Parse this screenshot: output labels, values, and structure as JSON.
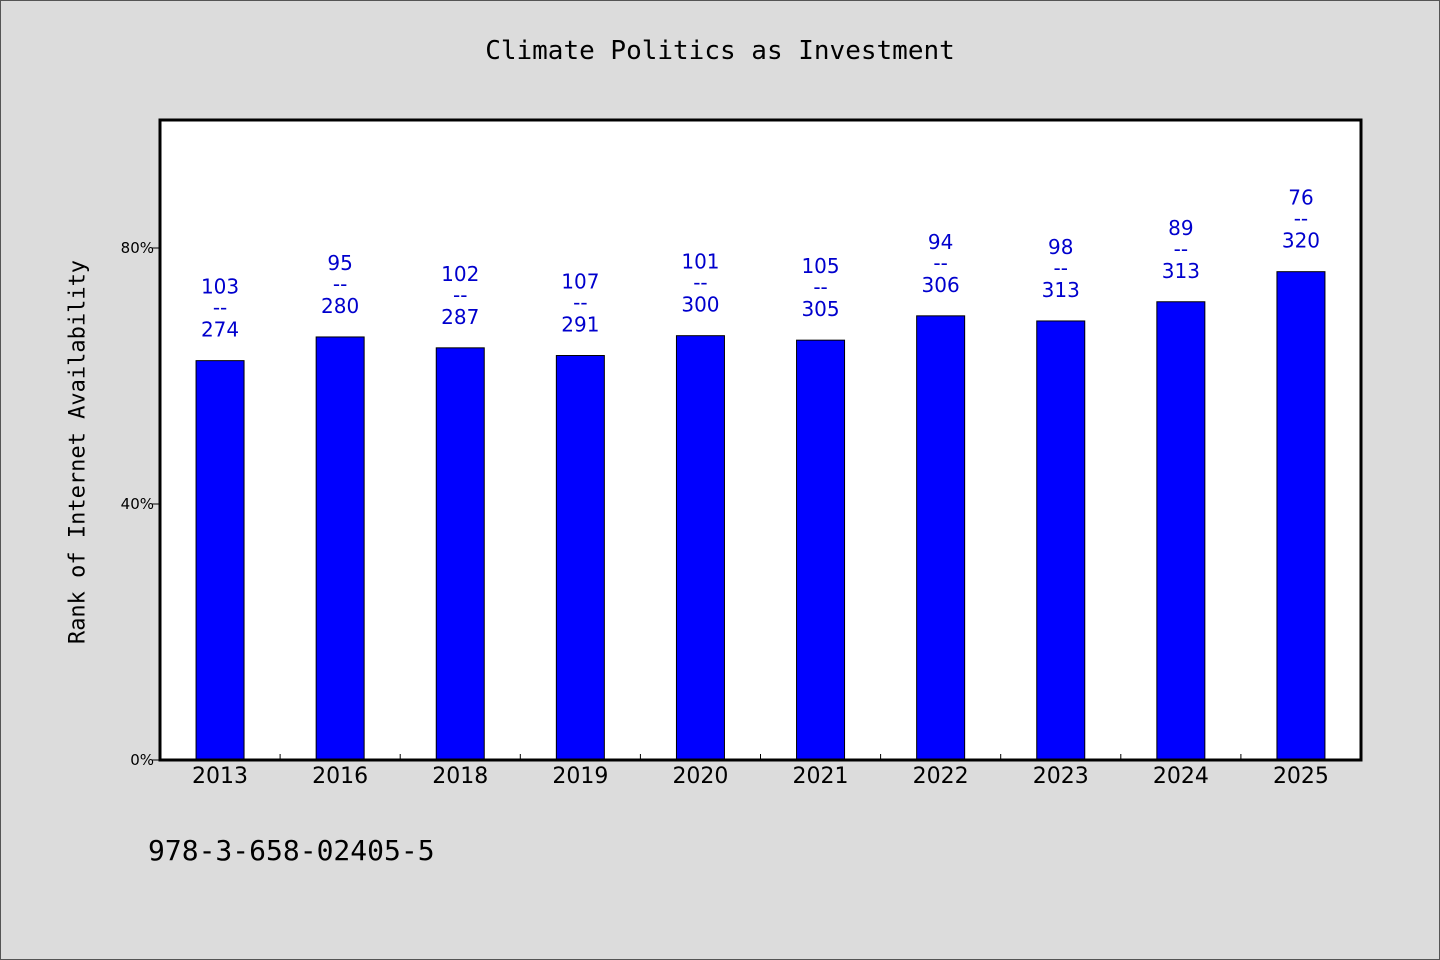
{
  "chart_data": {
    "type": "bar",
    "title": "Climate Politics as Investment",
    "xlabel": "",
    "ylabel": "Rank of Internet Availability",
    "categories": [
      "2013",
      "2016",
      "2018",
      "2019",
      "2020",
      "2021",
      "2022",
      "2023",
      "2024",
      "2025"
    ],
    "values": [
      62.4,
      66.1,
      64.4,
      63.2,
      66.3,
      65.6,
      69.4,
      68.6,
      71.6,
      76.3
    ],
    "value_unit": "%",
    "ylim": [
      0,
      100
    ],
    "yticks": [
      0,
      40,
      80
    ],
    "ytick_labels": [
      "0%",
      "40%",
      "80%"
    ],
    "data_labels": [
      {
        "top": "103",
        "sep": "--",
        "bottom": "274"
      },
      {
        "top": "95",
        "sep": "--",
        "bottom": "280"
      },
      {
        "top": "102",
        "sep": "--",
        "bottom": "287"
      },
      {
        "top": "107",
        "sep": "--",
        "bottom": "291"
      },
      {
        "top": "101",
        "sep": "--",
        "bottom": "300"
      },
      {
        "top": "105",
        "sep": "--",
        "bottom": "305"
      },
      {
        "top": "94",
        "sep": "--",
        "bottom": "306"
      },
      {
        "top": "98",
        "sep": "--",
        "bottom": "313"
      },
      {
        "top": "89",
        "sep": "--",
        "bottom": "313"
      },
      {
        "top": "76",
        "sep": "--",
        "bottom": "320"
      }
    ],
    "grid": false,
    "legend": "none",
    "colors": {
      "bar": "#0000ff",
      "data_label": "#0000cd",
      "plot_bg": "#ffffff",
      "page_bg": "#dcdcdc"
    }
  },
  "footer": {
    "isbn": "978-3-658-02405-5"
  }
}
